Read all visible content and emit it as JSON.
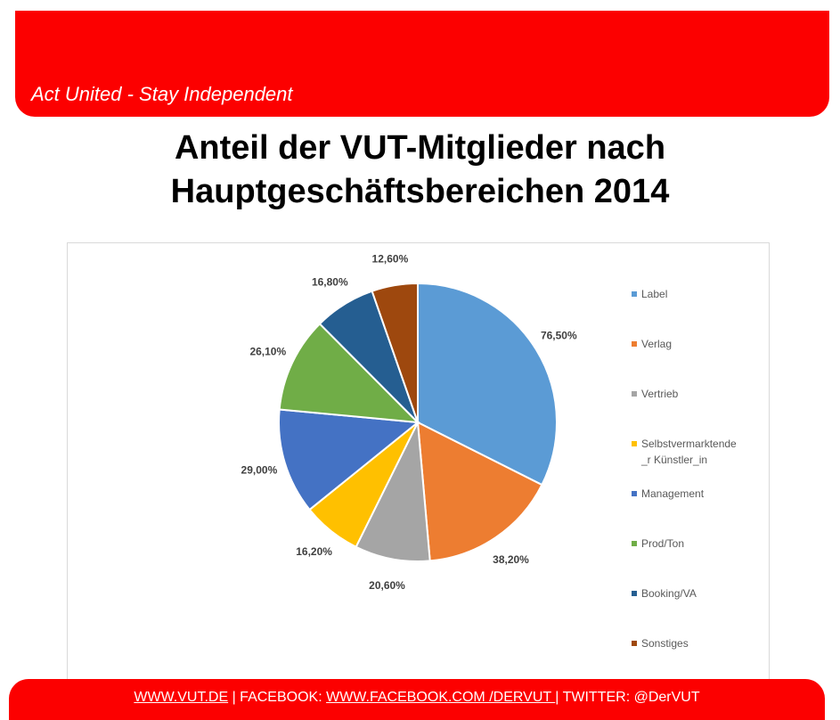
{
  "header": {
    "tagline": "Act United - Stay Independent"
  },
  "title": {
    "line1": "Anteil der VUT-Mitglieder nach",
    "line2": "Hauptgeschäftsbereichen 2014"
  },
  "chart_data": {
    "type": "pie",
    "categories": [
      "Label",
      "Verlag",
      "Vertrieb",
      "Selbstvermarktende_r Künstler_in",
      "Management",
      "Prod/Ton",
      "Booking/VA",
      "Sonstiges"
    ],
    "legend_lines": [
      [
        "Label"
      ],
      [
        "Verlag"
      ],
      [
        "Vertrieb"
      ],
      [
        "Selbstvermarktende",
        "_r Künstler_in"
      ],
      [
        "Management"
      ],
      [
        "Prod/Ton"
      ],
      [
        "Booking/VA"
      ],
      [
        "Sonstiges"
      ]
    ],
    "values": [
      76.5,
      38.2,
      20.6,
      16.2,
      29.0,
      26.1,
      16.8,
      12.6
    ],
    "labels": [
      "76,50%",
      "38,20%",
      "20,60%",
      "16,20%",
      "29,00%",
      "26,10%",
      "16,80%",
      "12,60%"
    ],
    "colors": [
      "#5b9bd5",
      "#ed7d31",
      "#a5a5a5",
      "#ffc000",
      "#4472c4",
      "#70ad47",
      "#255e91",
      "#9e480e"
    ],
    "legend_position": "right"
  },
  "footer": {
    "site_link": "WWW.VUT.DE",
    "sep1": " | FACEBOOK: ",
    "facebook_link": "WWW.FACEBOOK.COM /DERVUT ",
    "sep2": "| TWITTER: @DerVUT"
  }
}
